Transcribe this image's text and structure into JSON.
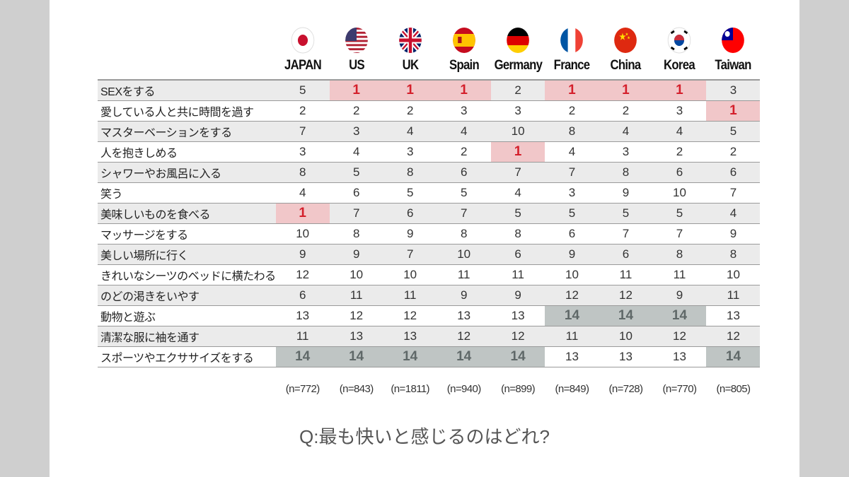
{
  "chart_data": {
    "type": "table",
    "title": "Q:最も快いと感じるのはどれ?",
    "columns": [
      "JAPAN",
      "US",
      "UK",
      "Spain",
      "Germany",
      "France",
      "China",
      "Korea",
      "Taiwan"
    ],
    "sample_sizes": [
      "(n=772)",
      "(n=843)",
      "(n=1811)",
      "(n=940)",
      "(n=899)",
      "(n=849)",
      "(n=728)",
      "(n=770)",
      "(n=805)"
    ],
    "rows": [
      {
        "label": "SEXをする",
        "values": [
          5,
          1,
          1,
          1,
          2,
          1,
          1,
          1,
          3
        ]
      },
      {
        "label": "愛している人と共に時間を過す",
        "values": [
          2,
          2,
          2,
          3,
          3,
          2,
          2,
          3,
          1
        ]
      },
      {
        "label": "マスターベーションをする",
        "values": [
          7,
          3,
          4,
          4,
          10,
          8,
          4,
          4,
          5
        ]
      },
      {
        "label": "人を抱きしめる",
        "values": [
          3,
          4,
          3,
          2,
          1,
          4,
          3,
          2,
          2
        ]
      },
      {
        "label": "シャワーやお風呂に入る",
        "values": [
          8,
          5,
          8,
          6,
          7,
          7,
          8,
          6,
          6
        ]
      },
      {
        "label": "笑う",
        "values": [
          4,
          6,
          5,
          5,
          4,
          3,
          9,
          10,
          7
        ]
      },
      {
        "label": "美味しいものを食べる",
        "values": [
          1,
          7,
          6,
          7,
          5,
          5,
          5,
          5,
          4
        ]
      },
      {
        "label": "マッサージをする",
        "values": [
          10,
          8,
          9,
          8,
          8,
          6,
          7,
          7,
          9
        ]
      },
      {
        "label": "美しい場所に行く",
        "values": [
          9,
          9,
          7,
          10,
          6,
          9,
          6,
          8,
          8
        ]
      },
      {
        "label": "きれいなシーツのベッドに横たわる",
        "values": [
          12,
          10,
          10,
          11,
          11,
          10,
          11,
          11,
          10
        ]
      },
      {
        "label": "のどの渇きをいやす",
        "values": [
          6,
          11,
          11,
          9,
          9,
          12,
          12,
          9,
          11
        ]
      },
      {
        "label": "動物と遊ぶ",
        "values": [
          13,
          12,
          12,
          13,
          13,
          14,
          14,
          14,
          13
        ]
      },
      {
        "label": "清潔な服に袖を通す",
        "values": [
          11,
          13,
          13,
          12,
          12,
          11,
          10,
          12,
          12
        ]
      },
      {
        "label": "スポーツやエクササイズをする",
        "values": [
          14,
          14,
          14,
          14,
          14,
          13,
          13,
          13,
          14
        ]
      }
    ],
    "highlight_colors": {
      "rank_1": "#d41f2b",
      "rank_1_bg": "#f1c7c9",
      "rank_14": "#5f6868",
      "rank_14_bg": "#bfc5c4"
    }
  }
}
